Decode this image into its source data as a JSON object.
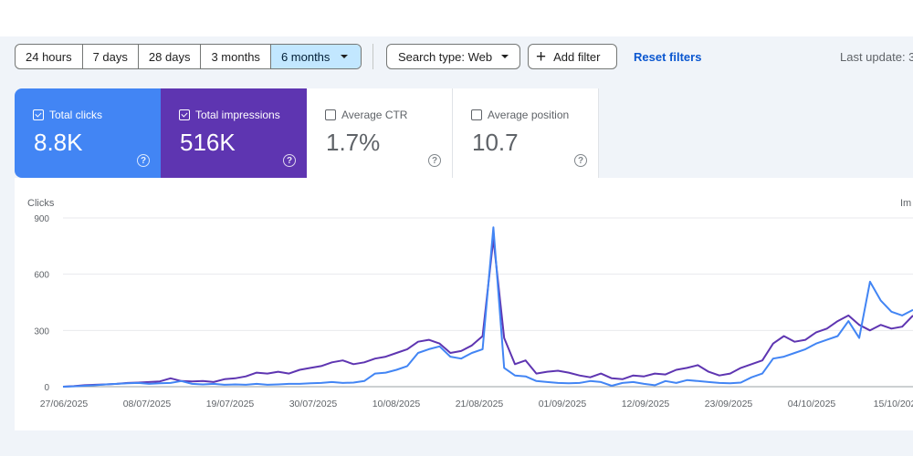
{
  "toolbar": {
    "ranges": [
      {
        "label": "24 hours",
        "active": false
      },
      {
        "label": "7 days",
        "active": false
      },
      {
        "label": "28 days",
        "active": false
      },
      {
        "label": "3 months",
        "active": false
      },
      {
        "label": "6 months",
        "active": true
      }
    ],
    "search_type": "Search type: Web",
    "add_filter": "Add filter",
    "reset_filters": "Reset filters",
    "last_update": "Last update: 3"
  },
  "metrics": [
    {
      "label": "Total clicks",
      "value": "8.8K",
      "checked": true,
      "color": "#4285f4"
    },
    {
      "label": "Total impressions",
      "value": "516K",
      "checked": true,
      "color": "#5e35b1"
    },
    {
      "label": "Average CTR",
      "value": "1.7%",
      "checked": false
    },
    {
      "label": "Average position",
      "value": "10.7",
      "checked": false
    }
  ],
  "chart_data": {
    "type": "line",
    "ylabel_left": "Clicks",
    "ylabel_right": "Im",
    "y_ticks": [
      0,
      300,
      600,
      900
    ],
    "ylim": [
      0,
      900
    ],
    "x_tick_labels": [
      "27/06/2025",
      "08/07/2025",
      "19/07/2025",
      "30/07/2025",
      "10/08/2025",
      "21/08/2025",
      "01/09/2025",
      "12/09/2025",
      "23/09/2025",
      "04/10/2025",
      "15/10/202"
    ],
    "grid": true,
    "series": [
      {
        "name": "Total clicks",
        "color": "#4285f4",
        "points": [
          [
            0,
            0
          ],
          [
            5,
            2
          ],
          [
            10,
            5
          ],
          [
            15,
            8
          ],
          [
            20,
            12
          ],
          [
            25,
            15
          ],
          [
            30,
            18
          ],
          [
            35,
            20
          ],
          [
            40,
            15
          ],
          [
            45,
            18
          ],
          [
            50,
            20
          ],
          [
            55,
            30
          ],
          [
            60,
            15
          ],
          [
            65,
            12
          ],
          [
            70,
            15
          ],
          [
            75,
            10
          ],
          [
            80,
            12
          ],
          [
            85,
            10
          ],
          [
            90,
            15
          ],
          [
            95,
            10
          ],
          [
            100,
            12
          ],
          [
            105,
            15
          ],
          [
            110,
            15
          ],
          [
            115,
            18
          ],
          [
            120,
            20
          ],
          [
            125,
            25
          ],
          [
            130,
            20
          ],
          [
            135,
            22
          ],
          [
            140,
            30
          ],
          [
            145,
            70
          ],
          [
            150,
            75
          ],
          [
            155,
            90
          ],
          [
            160,
            110
          ],
          [
            165,
            180
          ],
          [
            170,
            200
          ],
          [
            175,
            215
          ],
          [
            180,
            160
          ],
          [
            185,
            150
          ],
          [
            190,
            180
          ],
          [
            195,
            200
          ],
          [
            200,
            850
          ],
          [
            205,
            100
          ],
          [
            210,
            60
          ],
          [
            215,
            55
          ],
          [
            220,
            30
          ],
          [
            225,
            25
          ],
          [
            230,
            20
          ],
          [
            235,
            18
          ],
          [
            240,
            20
          ],
          [
            245,
            30
          ],
          [
            250,
            25
          ],
          [
            255,
            5
          ],
          [
            260,
            20
          ],
          [
            265,
            25
          ],
          [
            270,
            15
          ],
          [
            275,
            8
          ],
          [
            280,
            30
          ],
          [
            285,
            20
          ],
          [
            290,
            35
          ],
          [
            295,
            30
          ],
          [
            300,
            25
          ],
          [
            305,
            20
          ],
          [
            310,
            18
          ],
          [
            315,
            22
          ],
          [
            320,
            50
          ],
          [
            325,
            70
          ],
          [
            330,
            150
          ],
          [
            335,
            160
          ],
          [
            340,
            180
          ],
          [
            345,
            200
          ],
          [
            350,
            230
          ],
          [
            355,
            250
          ],
          [
            360,
            270
          ],
          [
            365,
            350
          ],
          [
            370,
            260
          ],
          [
            375,
            560
          ],
          [
            380,
            460
          ],
          [
            385,
            400
          ],
          [
            390,
            380
          ],
          [
            395,
            410
          ]
        ]
      },
      {
        "name": "Total impressions",
        "color": "#5e35b1",
        "points": [
          [
            0,
            0
          ],
          [
            5,
            3
          ],
          [
            10,
            8
          ],
          [
            15,
            10
          ],
          [
            20,
            12
          ],
          [
            25,
            15
          ],
          [
            30,
            20
          ],
          [
            35,
            22
          ],
          [
            40,
            25
          ],
          [
            45,
            28
          ],
          [
            50,
            45
          ],
          [
            55,
            30
          ],
          [
            60,
            28
          ],
          [
            65,
            30
          ],
          [
            70,
            25
          ],
          [
            75,
            40
          ],
          [
            80,
            45
          ],
          [
            85,
            55
          ],
          [
            90,
            75
          ],
          [
            95,
            70
          ],
          [
            100,
            80
          ],
          [
            105,
            70
          ],
          [
            110,
            90
          ],
          [
            115,
            100
          ],
          [
            120,
            110
          ],
          [
            125,
            130
          ],
          [
            130,
            140
          ],
          [
            135,
            120
          ],
          [
            140,
            130
          ],
          [
            145,
            150
          ],
          [
            150,
            160
          ],
          [
            155,
            180
          ],
          [
            160,
            200
          ],
          [
            165,
            240
          ],
          [
            170,
            250
          ],
          [
            175,
            230
          ],
          [
            180,
            180
          ],
          [
            185,
            190
          ],
          [
            190,
            220
          ],
          [
            195,
            270
          ],
          [
            200,
            790
          ],
          [
            205,
            260
          ],
          [
            210,
            120
          ],
          [
            215,
            140
          ],
          [
            220,
            70
          ],
          [
            225,
            80
          ],
          [
            230,
            85
          ],
          [
            235,
            75
          ],
          [
            240,
            60
          ],
          [
            245,
            50
          ],
          [
            250,
            70
          ],
          [
            255,
            45
          ],
          [
            260,
            40
          ],
          [
            265,
            60
          ],
          [
            270,
            55
          ],
          [
            275,
            70
          ],
          [
            280,
            65
          ],
          [
            285,
            90
          ],
          [
            290,
            100
          ],
          [
            295,
            115
          ],
          [
            300,
            80
          ],
          [
            305,
            60
          ],
          [
            310,
            70
          ],
          [
            315,
            100
          ],
          [
            320,
            120
          ],
          [
            325,
            140
          ],
          [
            330,
            230
          ],
          [
            335,
            270
          ],
          [
            340,
            240
          ],
          [
            345,
            250
          ],
          [
            350,
            290
          ],
          [
            355,
            310
          ],
          [
            360,
            350
          ],
          [
            365,
            380
          ],
          [
            370,
            330
          ],
          [
            375,
            300
          ],
          [
            380,
            330
          ],
          [
            385,
            310
          ],
          [
            390,
            320
          ],
          [
            395,
            380
          ]
        ]
      }
    ]
  }
}
